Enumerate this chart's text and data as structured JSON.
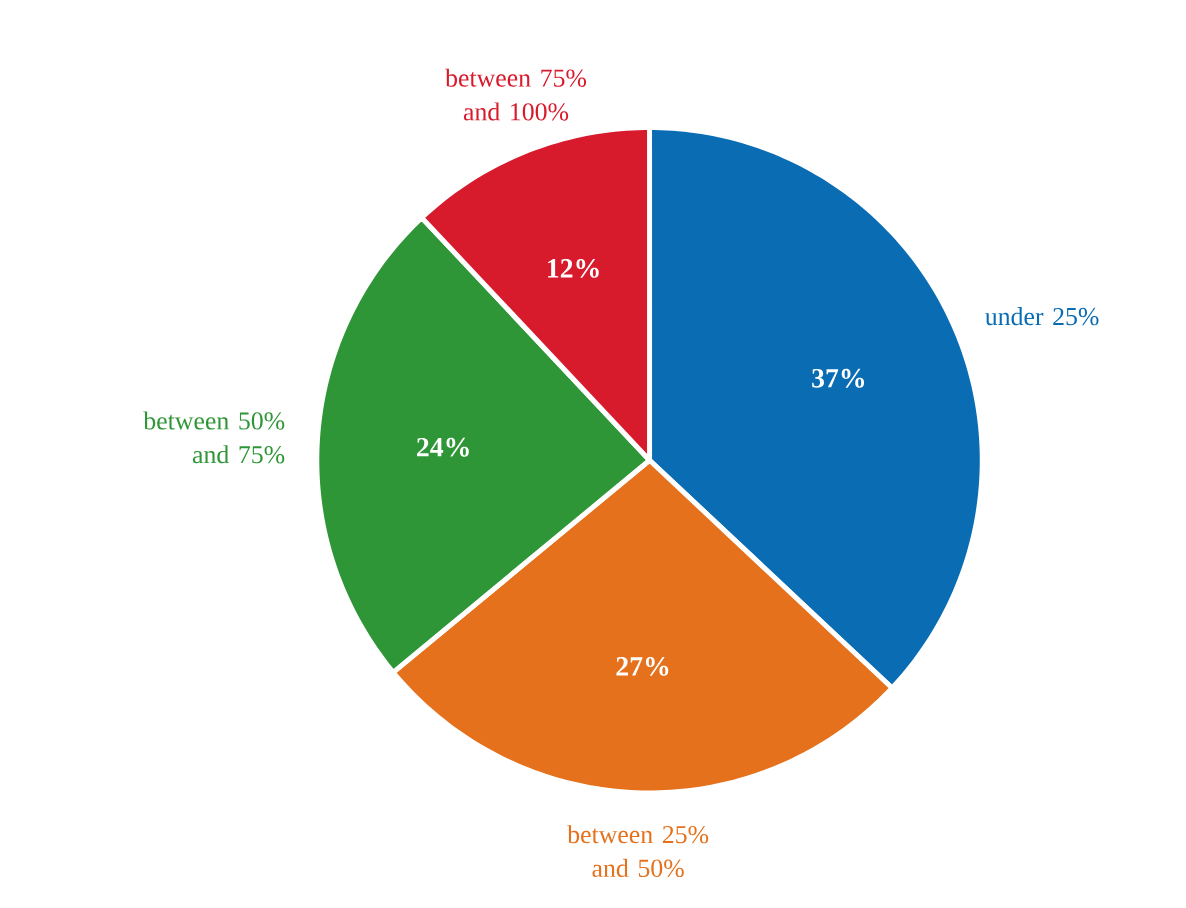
{
  "chart_data": {
    "type": "pie",
    "categories": [
      "under 25%",
      "between 25% and 50%",
      "between 50% and 75%",
      "between 75% and 100%"
    ],
    "values": [
      37,
      27,
      24,
      12
    ],
    "colors": [
      "#0a6db3",
      "#e5711c",
      "#2f9637",
      "#d81b2c"
    ],
    "value_labels": [
      "37%",
      "27%",
      "24%",
      "12%"
    ]
  }
}
